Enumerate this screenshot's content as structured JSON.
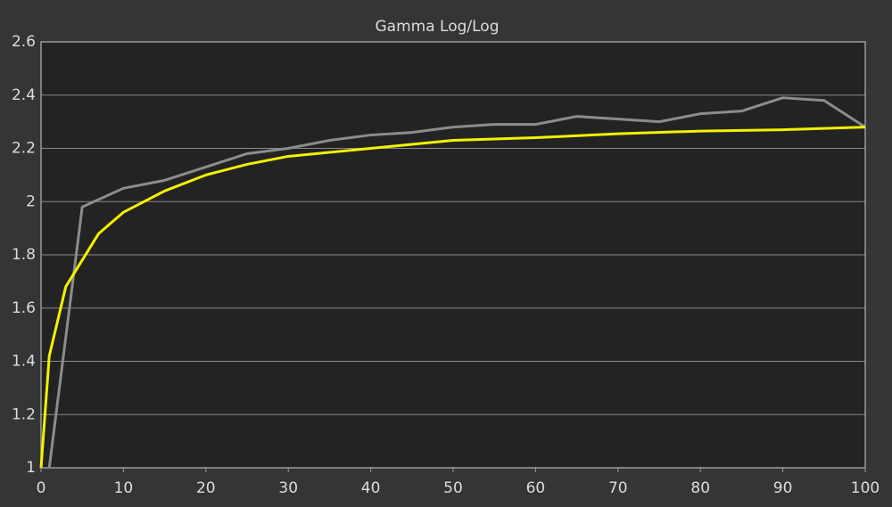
{
  "chart_data": {
    "type": "line",
    "title": "Gamma Log/Log",
    "xlim": [
      0,
      100
    ],
    "xticks": [
      0,
      10,
      20,
      30,
      40,
      50,
      60,
      70,
      80,
      90,
      100
    ],
    "ylim": [
      1,
      2.6
    ],
    "yticks": [
      1,
      1.2,
      1.4,
      1.6,
      1.8,
      2,
      2.2,
      2.4,
      2.6
    ],
    "grid": true,
    "series": [
      {
        "color": "#8c8c8c",
        "x": [
          1,
          5,
          10,
          15,
          20,
          25,
          30,
          35,
          40,
          45,
          50,
          55,
          60,
          65,
          70,
          75,
          80,
          85,
          90,
          95,
          100
        ],
        "values": [
          1.0,
          1.98,
          2.05,
          2.08,
          2.13,
          2.18,
          2.2,
          2.23,
          2.25,
          2.26,
          2.28,
          2.29,
          2.29,
          2.32,
          2.31,
          2.3,
          2.33,
          2.34,
          2.39,
          2.38,
          2.28
        ]
      },
      {
        "color": "#f2f200",
        "x": [
          0,
          1,
          3,
          5,
          7,
          10,
          15,
          20,
          25,
          30,
          40,
          50,
          60,
          70,
          80,
          90,
          100
        ],
        "values": [
          1.0,
          1.42,
          1.68,
          1.78,
          1.88,
          1.96,
          2.04,
          2.1,
          2.14,
          2.17,
          2.2,
          2.23,
          2.24,
          2.255,
          2.265,
          2.27,
          2.28
        ]
      }
    ]
  }
}
